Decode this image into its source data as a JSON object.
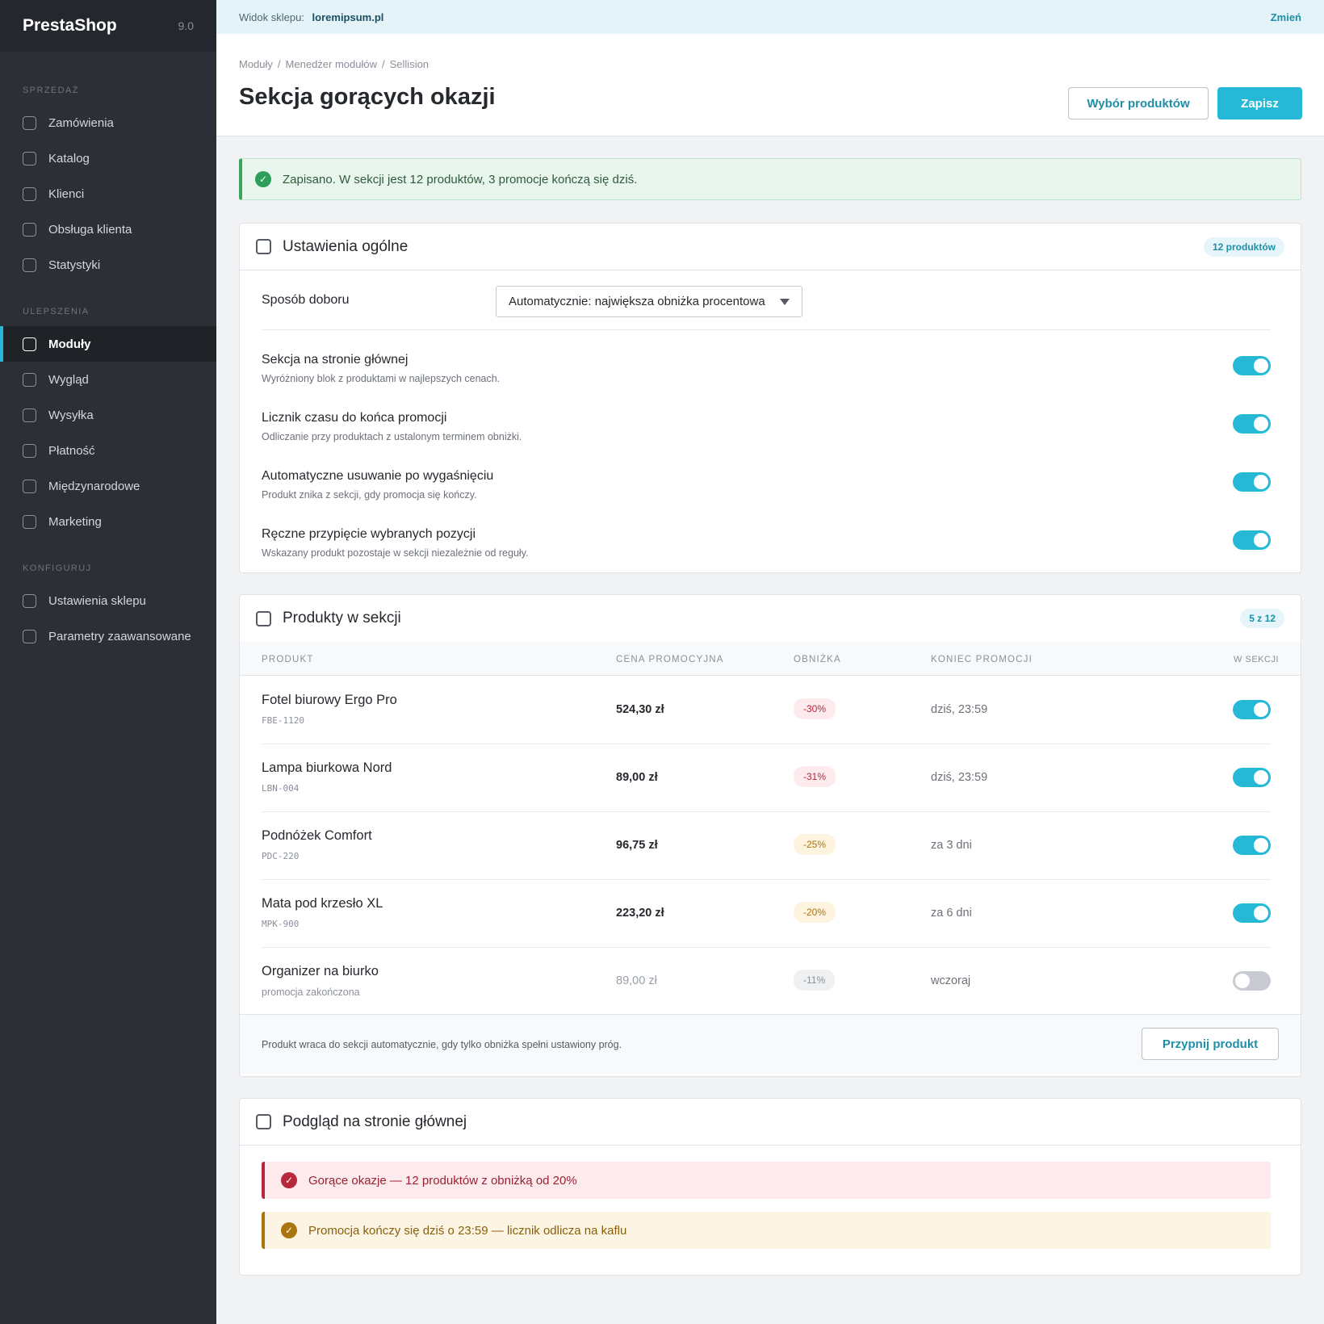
{
  "sidebar": {
    "brand": "PrestaShop",
    "version": "9.0",
    "sections": [
      {
        "title": "SPRZEDAŻ",
        "items": [
          "Zamówienia",
          "Katalog",
          "Klienci",
          "Obsługa klienta",
          "Statystyki"
        ]
      },
      {
        "title": "ULEPSZENIA",
        "items": [
          "Moduły",
          "Wygląd",
          "Wysyłka",
          "Płatność",
          "Międzynarodowe",
          "Marketing"
        ]
      },
      {
        "title": "KONFIGURUJ",
        "items": [
          "Ustawienia sklepu",
          "Parametry zaawansowane"
        ]
      }
    ],
    "active_item": "Moduły"
  },
  "topbar": {
    "shop_label": "Widok sklepu:",
    "shop_url": "loremipsum.pl",
    "change": "Zmień"
  },
  "header": {
    "breadcrumb": [
      "Moduły",
      "Menedżer modułów",
      "Sellision"
    ],
    "title": "Sekcja gorących okazji",
    "btn_products": "Wybór produktów",
    "btn_save": "Zapisz"
  },
  "success_alert": "Zapisano. W sekcji jest 12 produktów, 3 promocje kończą się dziś.",
  "general": {
    "title": "Ustawienia ogólne",
    "badge": "12 produktów",
    "method_label": "Sposób doboru",
    "method_value": "Automatycznie: największa obniżka procentowa",
    "toggles": [
      {
        "title": "Sekcja na stronie głównej",
        "desc": "Wyróżniony blok z produktami w najlepszych cenach.",
        "on": true
      },
      {
        "title": "Licznik czasu do końca promocji",
        "desc": "Odliczanie przy produktach z ustalonym terminem obniżki.",
        "on": true
      },
      {
        "title": "Automatyczne usuwanie po wygaśnięciu",
        "desc": "Produkt znika z sekcji, gdy promocja się kończy.",
        "on": true
      },
      {
        "title": "Ręczne przypięcie wybranych pozycji",
        "desc": "Wskazany produkt pozostaje w sekcji niezależnie od reguły.",
        "on": true
      }
    ]
  },
  "products": {
    "title": "Produkty w sekcji",
    "badge": "5 z 12",
    "columns": [
      "PRODUKT",
      "CENA PROMOCYJNA",
      "OBNIŻKA",
      "KONIEC PROMOCJI",
      "W SEKCJI"
    ],
    "rows": [
      {
        "name": "Fotel biurowy Ergo Pro",
        "sku": "FBE-1120",
        "price": "524,30 zł",
        "discount": "-30%",
        "tone": "red",
        "end": "dziś, 23:59",
        "in_section": true
      },
      {
        "name": "Lampa biurkowa Nord",
        "sku": "LBN-004",
        "price": "89,00 zł",
        "discount": "-31%",
        "tone": "red",
        "end": "dziś, 23:59",
        "in_section": true
      },
      {
        "name": "Podnóżek Comfort",
        "sku": "PDC-220",
        "price": "96,75 zł",
        "discount": "-25%",
        "tone": "amber",
        "end": "za 3 dni",
        "in_section": true
      },
      {
        "name": "Mata pod krzesło XL",
        "sku": "MPK-900",
        "price": "223,20 zł",
        "discount": "-20%",
        "tone": "amber",
        "end": "za 6 dni",
        "in_section": true
      },
      {
        "name": "Organizer na biurko",
        "sku": "promocja zakończona",
        "price": "89,00 zł",
        "discount": "-11%",
        "tone": "gray",
        "end": "wczoraj",
        "in_section": false
      }
    ],
    "footer_note": "Produkt wraca do sekcji automatycznie, gdy tylko obniżka spełni ustawiony próg.",
    "pin_button": "Przypnij produkt"
  },
  "preview": {
    "title": "Podgląd na stronie głównej",
    "alerts": [
      {
        "text": "Gorące okazje — 12 produktów z obniżką od 20%",
        "tone": "red"
      },
      {
        "text": "Promocja kończy się dziś o 23:59 — licznik odlicza na kaflu",
        "tone": "amber"
      }
    ]
  },
  "colors": {
    "accent": "#25b9d7",
    "sidebar": "#2c2f36",
    "success": "#2d9f5a",
    "danger": "#b8283d",
    "warning": "#a9750f"
  }
}
